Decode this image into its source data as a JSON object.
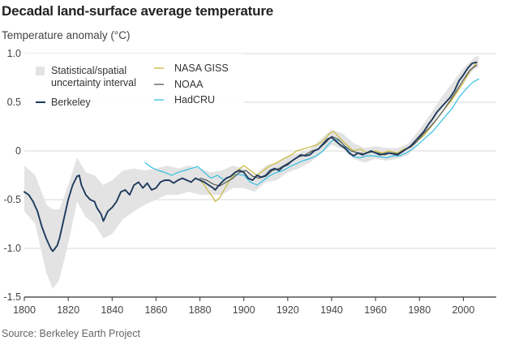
{
  "chart_data": {
    "type": "line",
    "title": "Decadal land-surface average temperature",
    "ylabel": "Temperature anomaly (°C)",
    "source": "Source: Berkeley Earth Project",
    "xlim": [
      1800,
      2015
    ],
    "ylim": [
      -1.5,
      1.0
    ],
    "x_ticks": [
      1800,
      1820,
      1840,
      1860,
      1880,
      1900,
      1920,
      1940,
      1960,
      1980,
      2000
    ],
    "y_ticks": [
      {
        "value": 1.0,
        "label": "1.0"
      },
      {
        "value": 0.5,
        "label": "0.5"
      },
      {
        "value": 0,
        "label": "0"
      },
      {
        "value": -0.5,
        "label": "-0.5"
      },
      {
        "value": -1.0,
        "label": "-1.0"
      },
      {
        "value": -1.5,
        "label": "-1.5"
      }
    ],
    "grid": "horizontal",
    "legend_position": "top-left",
    "legend": {
      "uncertainty": "Statistical/spatial uncertainty interval",
      "uncertainty_lines": [
        "Statistical/spatial",
        "uncertainty interval"
      ],
      "berkeley": "Berkeley",
      "nasa": "NASA GISS",
      "noaa": "NOAA",
      "hadcru": "HadCRU"
    },
    "colors": {
      "berkeley": "#1d3a5c",
      "nasa": "#c9b83a",
      "noaa": "#555555",
      "hadcru": "#33bfe0",
      "band": "#e3e3e3",
      "grid": "#d8d8d8",
      "axis": "#333333"
    },
    "band": [
      [
        1800,
        -0.15,
        -0.62
      ],
      [
        1805,
        -0.25,
        -0.75
      ],
      [
        1810,
        -0.55,
        -1.25
      ],
      [
        1813,
        -0.6,
        -1.42
      ],
      [
        1816,
        -0.6,
        -1.32
      ],
      [
        1820,
        -0.35,
        -0.95
      ],
      [
        1824,
        -0.07,
        -0.52
      ],
      [
        1828,
        -0.22,
        -0.68
      ],
      [
        1832,
        -0.25,
        -0.75
      ],
      [
        1836,
        -0.35,
        -0.9
      ],
      [
        1840,
        -0.3,
        -0.85
      ],
      [
        1845,
        -0.2,
        -0.7
      ],
      [
        1850,
        -0.18,
        -0.62
      ],
      [
        1855,
        -0.2,
        -0.55
      ],
      [
        1860,
        -0.18,
        -0.5
      ],
      [
        1865,
        -0.15,
        -0.45
      ],
      [
        1870,
        -0.18,
        -0.45
      ],
      [
        1875,
        -0.15,
        -0.42
      ],
      [
        1880,
        -0.18,
        -0.45
      ],
      [
        1885,
        -0.22,
        -0.45
      ],
      [
        1890,
        -0.2,
        -0.45
      ],
      [
        1895,
        -0.15,
        -0.38
      ],
      [
        1900,
        -0.18,
        -0.38
      ],
      [
        1905,
        -0.25,
        -0.42
      ],
      [
        1910,
        -0.15,
        -0.32
      ],
      [
        1915,
        -0.12,
        -0.3
      ],
      [
        1920,
        -0.05,
        -0.22
      ],
      [
        1925,
        -0.02,
        -0.18
      ],
      [
        1930,
        0.02,
        -0.12
      ],
      [
        1935,
        0.12,
        -0.03
      ],
      [
        1940,
        0.22,
        0.06
      ],
      [
        1945,
        0.18,
        0.02
      ],
      [
        1950,
        0.08,
        -0.08
      ],
      [
        1955,
        0.03,
        -0.12
      ],
      [
        1960,
        0.05,
        -0.08
      ],
      [
        1965,
        0.03,
        -0.1
      ],
      [
        1970,
        0.03,
        -0.08
      ],
      [
        1975,
        0.08,
        -0.04
      ],
      [
        1980,
        0.22,
        0.12
      ],
      [
        1985,
        0.38,
        0.26
      ],
      [
        1990,
        0.55,
        0.42
      ],
      [
        1995,
        0.7,
        0.57
      ],
      [
        2000,
        0.85,
        0.72
      ],
      [
        2005,
        0.96,
        0.84
      ],
      [
        2007,
        0.98,
        0.86
      ]
    ],
    "series": [
      {
        "name": "Berkeley",
        "key": "berkeley",
        "width": 1.9,
        "points": [
          [
            1800,
            -0.42
          ],
          [
            1802,
            -0.45
          ],
          [
            1804,
            -0.52
          ],
          [
            1806,
            -0.62
          ],
          [
            1808,
            -0.78
          ],
          [
            1810,
            -0.9
          ],
          [
            1812,
            -1.0
          ],
          [
            1813,
            -1.03
          ],
          [
            1814,
            -1.0
          ],
          [
            1815,
            -0.97
          ],
          [
            1816,
            -0.9
          ],
          [
            1818,
            -0.7
          ],
          [
            1820,
            -0.5
          ],
          [
            1822,
            -0.35
          ],
          [
            1824,
            -0.26
          ],
          [
            1825,
            -0.25
          ],
          [
            1826,
            -0.35
          ],
          [
            1828,
            -0.45
          ],
          [
            1830,
            -0.5
          ],
          [
            1832,
            -0.52
          ],
          [
            1833,
            -0.58
          ],
          [
            1835,
            -0.65
          ],
          [
            1836,
            -0.72
          ],
          [
            1838,
            -0.62
          ],
          [
            1840,
            -0.58
          ],
          [
            1842,
            -0.52
          ],
          [
            1844,
            -0.42
          ],
          [
            1846,
            -0.4
          ],
          [
            1848,
            -0.45
          ],
          [
            1850,
            -0.35
          ],
          [
            1852,
            -0.32
          ],
          [
            1854,
            -0.38
          ],
          [
            1856,
            -0.33
          ],
          [
            1858,
            -0.4
          ],
          [
            1860,
            -0.38
          ],
          [
            1862,
            -0.32
          ],
          [
            1864,
            -0.3
          ],
          [
            1866,
            -0.3
          ],
          [
            1868,
            -0.33
          ],
          [
            1870,
            -0.3
          ],
          [
            1872,
            -0.28
          ],
          [
            1874,
            -0.3
          ],
          [
            1876,
            -0.32
          ],
          [
            1878,
            -0.28
          ],
          [
            1880,
            -0.3
          ],
          [
            1882,
            -0.32
          ],
          [
            1884,
            -0.35
          ],
          [
            1886,
            -0.38
          ],
          [
            1887,
            -0.4
          ],
          [
            1888,
            -0.37
          ],
          [
            1890,
            -0.32
          ],
          [
            1892,
            -0.28
          ],
          [
            1894,
            -0.26
          ],
          [
            1896,
            -0.22
          ],
          [
            1898,
            -0.2
          ],
          [
            1900,
            -0.22
          ],
          [
            1902,
            -0.28
          ],
          [
            1904,
            -0.3
          ],
          [
            1906,
            -0.25
          ],
          [
            1908,
            -0.27
          ],
          [
            1910,
            -0.25
          ],
          [
            1912,
            -0.2
          ],
          [
            1914,
            -0.18
          ],
          [
            1916,
            -0.2
          ],
          [
            1918,
            -0.16
          ],
          [
            1920,
            -0.14
          ],
          [
            1922,
            -0.1
          ],
          [
            1924,
            -0.07
          ],
          [
            1926,
            -0.04
          ],
          [
            1928,
            -0.05
          ],
          [
            1930,
            -0.04
          ],
          [
            1932,
            0.0
          ],
          [
            1934,
            0.02
          ],
          [
            1936,
            0.07
          ],
          [
            1938,
            0.12
          ],
          [
            1940,
            0.14
          ],
          [
            1942,
            0.1
          ],
          [
            1944,
            0.06
          ],
          [
            1946,
            0.03
          ],
          [
            1948,
            -0.02
          ],
          [
            1950,
            -0.05
          ],
          [
            1952,
            -0.02
          ],
          [
            1954,
            -0.04
          ],
          [
            1956,
            -0.02
          ],
          [
            1958,
            0.0
          ],
          [
            1960,
            -0.02
          ],
          [
            1962,
            -0.04
          ],
          [
            1964,
            -0.03
          ],
          [
            1966,
            -0.02
          ],
          [
            1968,
            -0.03
          ],
          [
            1970,
            -0.04
          ],
          [
            1972,
            -0.01
          ],
          [
            1974,
            0.02
          ],
          [
            1976,
            0.05
          ],
          [
            1978,
            0.1
          ],
          [
            1980,
            0.15
          ],
          [
            1982,
            0.2
          ],
          [
            1984,
            0.27
          ],
          [
            1986,
            0.33
          ],
          [
            1988,
            0.4
          ],
          [
            1990,
            0.45
          ],
          [
            1992,
            0.5
          ],
          [
            1994,
            0.55
          ],
          [
            1996,
            0.62
          ],
          [
            1998,
            0.72
          ],
          [
            2000,
            0.78
          ],
          [
            2002,
            0.85
          ],
          [
            2004,
            0.9
          ],
          [
            2006,
            0.91
          ]
        ]
      },
      {
        "name": "NASA GISS",
        "key": "nasa",
        "width": 1.2,
        "points": [
          [
            1880,
            -0.3
          ],
          [
            1882,
            -0.35
          ],
          [
            1884,
            -0.42
          ],
          [
            1886,
            -0.48
          ],
          [
            1887,
            -0.52
          ],
          [
            1889,
            -0.48
          ],
          [
            1891,
            -0.4
          ],
          [
            1893,
            -0.32
          ],
          [
            1895,
            -0.26
          ],
          [
            1897,
            -0.2
          ],
          [
            1900,
            -0.15
          ],
          [
            1903,
            -0.2
          ],
          [
            1906,
            -0.25
          ],
          [
            1909,
            -0.2
          ],
          [
            1912,
            -0.15
          ],
          [
            1915,
            -0.12
          ],
          [
            1918,
            -0.08
          ],
          [
            1921,
            -0.05
          ],
          [
            1924,
            0.0
          ],
          [
            1927,
            0.02
          ],
          [
            1930,
            0.04
          ],
          [
            1933,
            0.06
          ],
          [
            1936,
            0.1
          ],
          [
            1939,
            0.18
          ],
          [
            1941,
            0.2
          ],
          [
            1943,
            0.15
          ],
          [
            1946,
            0.08
          ],
          [
            1950,
            0.0
          ],
          [
            1953,
            0.02
          ],
          [
            1956,
            -0.02
          ],
          [
            1960,
            0.0
          ],
          [
            1963,
            -0.02
          ],
          [
            1966,
            0.0
          ],
          [
            1970,
            -0.02
          ],
          [
            1973,
            0.02
          ],
          [
            1976,
            0.04
          ],
          [
            1979,
            0.1
          ],
          [
            1982,
            0.16
          ],
          [
            1985,
            0.24
          ],
          [
            1988,
            0.33
          ],
          [
            1991,
            0.42
          ],
          [
            1994,
            0.5
          ],
          [
            1997,
            0.6
          ],
          [
            2000,
            0.7
          ],
          [
            2003,
            0.82
          ],
          [
            2006,
            0.9
          ]
        ]
      },
      {
        "name": "NOAA",
        "key": "noaa",
        "width": 1.2,
        "points": [
          [
            1880,
            -0.28
          ],
          [
            1883,
            -0.3
          ],
          [
            1886,
            -0.34
          ],
          [
            1889,
            -0.36
          ],
          [
            1892,
            -0.32
          ],
          [
            1895,
            -0.28
          ],
          [
            1898,
            -0.22
          ],
          [
            1901,
            -0.2
          ],
          [
            1904,
            -0.26
          ],
          [
            1907,
            -0.28
          ],
          [
            1910,
            -0.26
          ],
          [
            1913,
            -0.2
          ],
          [
            1916,
            -0.18
          ],
          [
            1919,
            -0.14
          ],
          [
            1922,
            -0.1
          ],
          [
            1925,
            -0.06
          ],
          [
            1928,
            -0.04
          ],
          [
            1931,
            0.0
          ],
          [
            1934,
            0.02
          ],
          [
            1937,
            0.08
          ],
          [
            1940,
            0.15
          ],
          [
            1943,
            0.12
          ],
          [
            1946,
            0.05
          ],
          [
            1949,
            0.0
          ],
          [
            1952,
            -0.02
          ],
          [
            1955,
            -0.03
          ],
          [
            1958,
            -0.01
          ],
          [
            1961,
            -0.02
          ],
          [
            1964,
            -0.04
          ],
          [
            1967,
            -0.02
          ],
          [
            1970,
            -0.03
          ],
          [
            1973,
            0.01
          ],
          [
            1976,
            0.04
          ],
          [
            1979,
            0.1
          ],
          [
            1982,
            0.18
          ],
          [
            1985,
            0.25
          ],
          [
            1988,
            0.33
          ],
          [
            1991,
            0.42
          ],
          [
            1994,
            0.52
          ],
          [
            1997,
            0.62
          ],
          [
            2000,
            0.73
          ],
          [
            2003,
            0.83
          ],
          [
            2006,
            0.88
          ]
        ]
      },
      {
        "name": "HadCRU",
        "key": "hadcru",
        "width": 1.2,
        "points": [
          [
            1855,
            -0.12
          ],
          [
            1858,
            -0.17
          ],
          [
            1861,
            -0.2
          ],
          [
            1864,
            -0.22
          ],
          [
            1867,
            -0.25
          ],
          [
            1870,
            -0.22
          ],
          [
            1873,
            -0.2
          ],
          [
            1876,
            -0.18
          ],
          [
            1879,
            -0.16
          ],
          [
            1882,
            -0.22
          ],
          [
            1885,
            -0.28
          ],
          [
            1888,
            -0.25
          ],
          [
            1891,
            -0.3
          ],
          [
            1894,
            -0.26
          ],
          [
            1897,
            -0.24
          ],
          [
            1900,
            -0.25
          ],
          [
            1903,
            -0.32
          ],
          [
            1906,
            -0.35
          ],
          [
            1909,
            -0.3
          ],
          [
            1912,
            -0.25
          ],
          [
            1915,
            -0.22
          ],
          [
            1918,
            -0.2
          ],
          [
            1921,
            -0.16
          ],
          [
            1924,
            -0.13
          ],
          [
            1927,
            -0.1
          ],
          [
            1930,
            -0.08
          ],
          [
            1933,
            -0.05
          ],
          [
            1936,
            0.0
          ],
          [
            1939,
            0.08
          ],
          [
            1941,
            0.12
          ],
          [
            1944,
            0.1
          ],
          [
            1947,
            0.02
          ],
          [
            1950,
            -0.06
          ],
          [
            1953,
            -0.07
          ],
          [
            1956,
            -0.05
          ],
          [
            1959,
            -0.05
          ],
          [
            1962,
            -0.06
          ],
          [
            1965,
            -0.07
          ],
          [
            1968,
            -0.05
          ],
          [
            1971,
            -0.05
          ],
          [
            1974,
            -0.02
          ],
          [
            1977,
            0.02
          ],
          [
            1980,
            0.08
          ],
          [
            1983,
            0.14
          ],
          [
            1986,
            0.2
          ],
          [
            1989,
            0.28
          ],
          [
            1992,
            0.36
          ],
          [
            1995,
            0.44
          ],
          [
            1998,
            0.55
          ],
          [
            2001,
            0.63
          ],
          [
            2004,
            0.7
          ],
          [
            2007,
            0.74
          ]
        ]
      }
    ]
  }
}
